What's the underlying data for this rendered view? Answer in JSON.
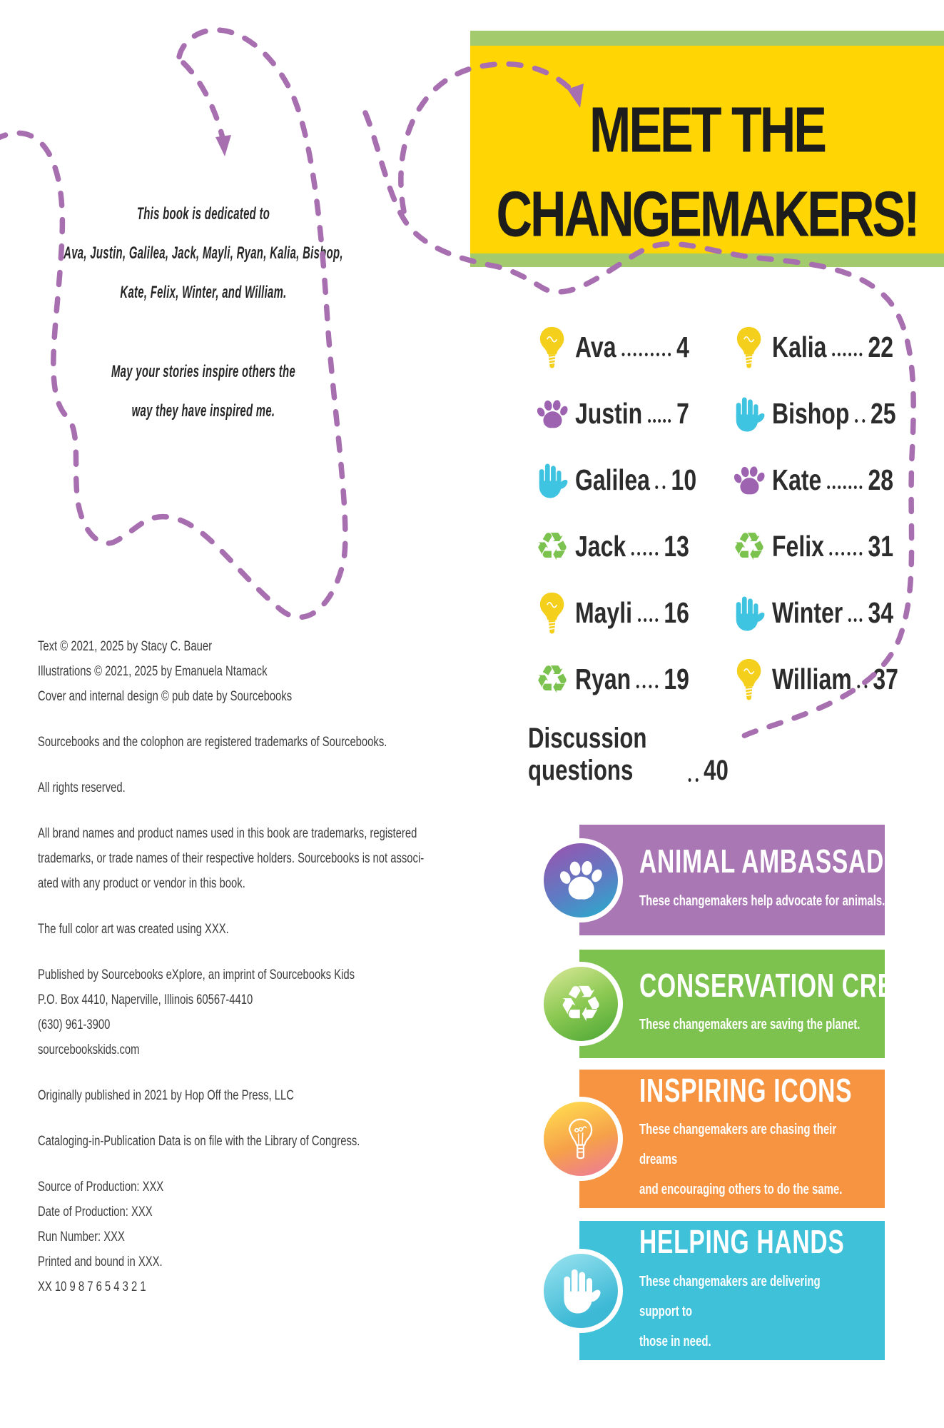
{
  "dedication": {
    "line1": "This book is dedicated to",
    "line2": "Ava, Justin, Galilea, Jack, Mayli, Ryan, Kalia, Bishop,",
    "line3": "Kate, Felix, Winter, and William.",
    "line4": "May your stories inspire others the",
    "line5": "way they have inspired me."
  },
  "colophon": {
    "lines": [
      "Text © 2021, 2025 by Stacy C. Bauer",
      "Illustrations © 2021, 2025 by Emanuela Ntamack",
      "Cover and internal design © pub date by Sourcebooks",
      "",
      "Sourcebooks and the colophon are registered trademarks of Sourcebooks.",
      "",
      "All rights reserved.",
      "",
      "All brand names and product names used in this book are trademarks, registered",
      "trademarks, or trade names of their respective holders. Sourcebooks is not associ-",
      "ated with any product or vendor in this book.",
      "",
      "The full color art was created using XXX.",
      "",
      "Published by Sourcebooks eXplore, an imprint of Sourcebooks Kids",
      "P.O. Box 4410, Naperville, Illinois 60567-4410",
      "(630) 961-3900",
      "sourcebookskids.com",
      "",
      "Originally published in 2021 by Hop Off the Press, LLC",
      "",
      "Cataloging-in-Publication Data is on file with the Library of Congress.",
      "",
      "Source of Production: XXX",
      "Date of Production: XXX",
      "Run Number: XXX",
      "Printed and bound in XXX.",
      "XX 10 9 8 7 6 5 4 3 2 1"
    ]
  },
  "banner": {
    "title_line1": "MEET THE",
    "title_line2": "CHANGEMAKERS!"
  },
  "toc": {
    "left": [
      {
        "name": "Ava",
        "page": "4",
        "icon": "lightbulb"
      },
      {
        "name": "Justin",
        "page": "7",
        "icon": "paw"
      },
      {
        "name": "Galilea",
        "page": "10",
        "icon": "hand"
      },
      {
        "name": "Jack",
        "page": "13",
        "icon": "recycle"
      },
      {
        "name": "Mayli",
        "page": "16",
        "icon": "lightbulb"
      },
      {
        "name": "Ryan",
        "page": "19",
        "icon": "recycle"
      }
    ],
    "right": [
      {
        "name": "Kalia",
        "page": "22",
        "icon": "lightbulb"
      },
      {
        "name": "Bishop",
        "page": "25",
        "icon": "hand"
      },
      {
        "name": "Kate",
        "page": "28",
        "icon": "paw"
      },
      {
        "name": "Felix",
        "page": "31",
        "icon": "recycle"
      },
      {
        "name": "Winter",
        "page": "34",
        "icon": "hand"
      },
      {
        "name": "William",
        "page": "37",
        "icon": "lightbulb"
      }
    ],
    "discussion": {
      "label": "Discussion questions",
      "page": "40"
    }
  },
  "categories": [
    {
      "title": "ANIMAL AMBASSADORS",
      "description": "These changemakers help advocate for animals.",
      "icon": "paw",
      "color": "#aa77b5"
    },
    {
      "title": "CONSERVATION CREW",
      "description": "These changemakers are saving the planet.",
      "icon": "recycle",
      "color": "#7dc24f"
    },
    {
      "title": "INSPIRING ICONS",
      "description": "These changemakers are chasing their dreams\nand encouraging others to do the same.",
      "icon": "lightbulb-outline",
      "color": "#f79441"
    },
    {
      "title": "HELPING HANDS",
      "description": "These changemakers are delivering support to\nthose in need.",
      "icon": "hand",
      "color": "#3ec1d9"
    }
  ],
  "colors": {
    "banner_yellow": "#ffd503",
    "banner_green": "#a3ca6d",
    "dash_purple": "#a76fb0",
    "icon_yellow": "#f4cf1c",
    "icon_purple": "#9e63b0",
    "icon_cyan": "#3ec3e0",
    "icon_green": "#7cc24e",
    "text_dark": "#2c2c2c"
  }
}
